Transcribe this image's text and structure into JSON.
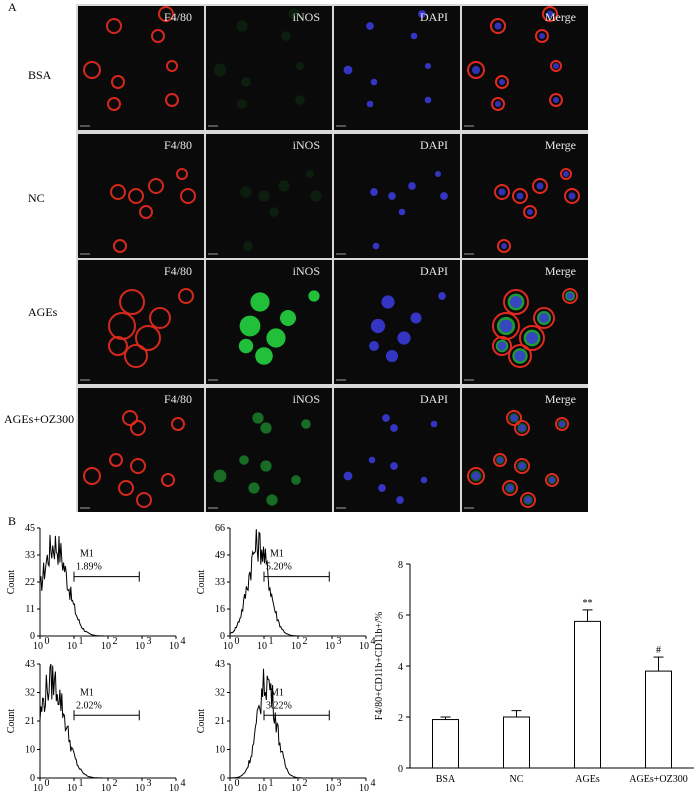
{
  "figure": {
    "panel_a_label": "A",
    "panel_b_label": "B",
    "channels": [
      "F4/80",
      "iNOS",
      "DAPI",
      "Merge"
    ],
    "rows": [
      "BSA",
      "NC",
      "AGEs",
      "AGEs+OZ300"
    ]
  },
  "flow_plots": [
    {
      "gate": "M1",
      "percent": "1.89%",
      "yticks": [
        "0",
        "11",
        "22",
        "33",
        "45"
      ],
      "ylabel": "Count",
      "xticks": [
        "10^0",
        "10^1",
        "10^2",
        "10^3",
        "10^4"
      ]
    },
    {
      "gate": "M1",
      "percent": "5.20%",
      "yticks": [
        "0",
        "16",
        "33",
        "49",
        "66"
      ],
      "ylabel": "Count",
      "xticks": [
        "10^0",
        "10^1",
        "10^2",
        "10^3",
        "10^4"
      ]
    },
    {
      "gate": "M1",
      "percent": "2.02%",
      "yticks": [
        "0",
        "10",
        "21",
        "32",
        "43"
      ],
      "ylabel": "Count",
      "xticks": [
        "10^0",
        "10^1",
        "10^2",
        "10^3",
        "10^4"
      ]
    },
    {
      "gate": "M1",
      "percent": "3.22%",
      "yticks": [
        "0",
        "10",
        "21",
        "32",
        "43"
      ],
      "ylabel": "Count",
      "xticks": [
        "10^0",
        "10^1",
        "10^2",
        "10^3",
        "10^4"
      ]
    }
  ],
  "colors": {
    "f480": "#e02a1f",
    "inos": "#22c03a",
    "dapi": "#3a3ad8"
  },
  "chart_data": {
    "type": "bar",
    "categories": [
      "BSA",
      "NC",
      "AGEs",
      "AGEs+OZ300"
    ],
    "values": [
      1.9,
      2.0,
      5.75,
      3.8
    ],
    "errors": [
      0.1,
      0.25,
      0.45,
      0.55
    ],
    "annotations": [
      "",
      "",
      "**",
      "#"
    ],
    "ylabel": "F4/80+CD11b+CD11b+/%",
    "ylim": [
      0,
      8
    ],
    "yticks": [
      0,
      2,
      4,
      6,
      8
    ]
  }
}
